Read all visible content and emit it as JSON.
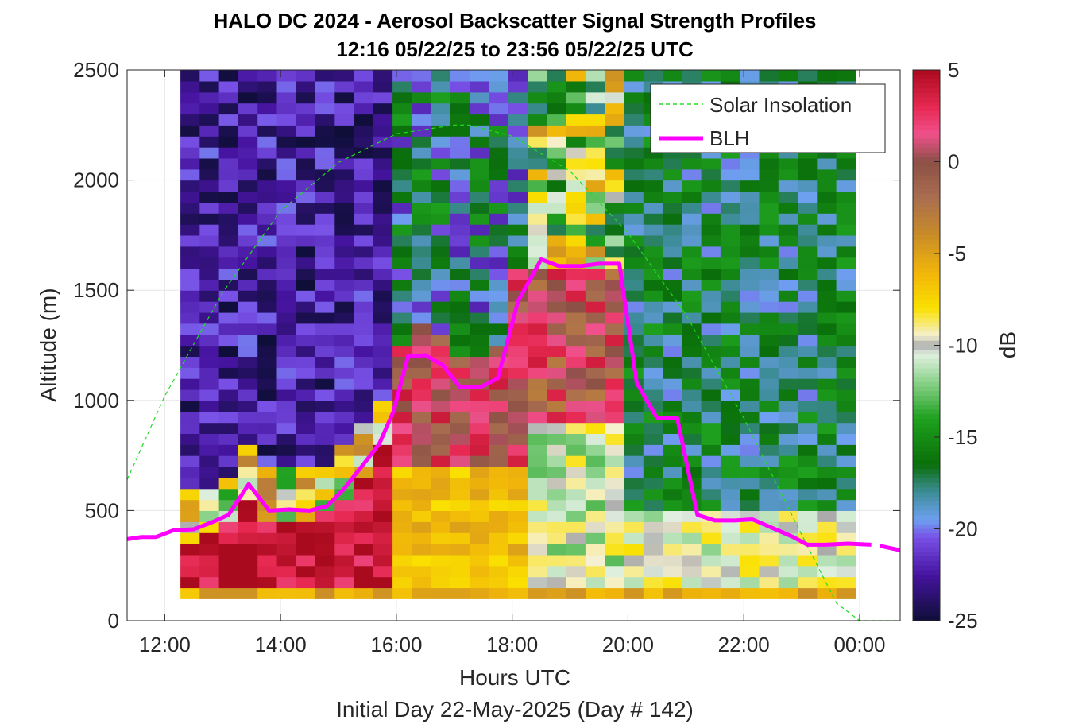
{
  "chart_data": {
    "type": "heatmap",
    "title": "HALO DC 2024 - Aerosol Backscatter Signal Strength Profiles",
    "subtitle": "12:16 05/22/25 to 23:56 05/22/25  UTC",
    "xlabel": "Hours UTC",
    "ylabel": "Altitude (m)",
    "footer": "Initial Day 22-May-2025 (Day # 142)",
    "x_ticks": [
      "12:00",
      "14:00",
      "16:00",
      "18:00",
      "20:00",
      "22:00",
      "00:00"
    ],
    "x_tick_hours": [
      12,
      14,
      16,
      18,
      20,
      22,
      24
    ],
    "xlim_hours": [
      11.35,
      24.7
    ],
    "y_ticks": [
      "0",
      "500",
      "1000",
      "1500",
      "2000",
      "2500"
    ],
    "y_tick_values": [
      0,
      500,
      1000,
      1500,
      2000,
      2500
    ],
    "ylim": [
      0,
      2500
    ],
    "grid": true,
    "legend_position": "top-right",
    "colorbar": {
      "label": "dB",
      "limits": [
        -25,
        5
      ],
      "ticks": [
        "5",
        "0",
        "-5",
        "-10",
        "-15",
        "-20",
        "-25"
      ],
      "tick_values": [
        5,
        0,
        -5,
        -10,
        -15,
        -20,
        -25
      ]
    },
    "series": [
      {
        "name": "Solar Insolation",
        "style": "dashed",
        "color": "#22dd22",
        "x_hours": [
          11.35,
          12.0,
          13.0,
          14.0,
          15.0,
          16.0,
          17.0,
          17.25,
          18.0,
          19.0,
          20.0,
          21.0,
          22.0,
          23.0,
          23.6,
          24.0,
          24.3,
          24.7
        ],
        "y": [
          640,
          1020,
          1490,
          1860,
          2080,
          2210,
          2250,
          2250,
          2200,
          2040,
          1760,
          1390,
          920,
          390,
          80,
          0,
          0,
          0
        ]
      },
      {
        "name": "BLH",
        "style": "solid",
        "color": "#ff00ff",
        "x_hours": [
          11.35,
          11.6,
          11.85,
          12.15,
          12.5,
          12.8,
          13.1,
          13.45,
          13.8,
          14.15,
          14.5,
          14.8,
          15.1,
          15.4,
          15.7,
          15.95,
          16.2,
          16.5,
          16.8,
          17.1,
          17.45,
          17.75,
          18.1,
          18.5,
          18.8,
          19.2,
          19.5,
          19.85,
          20.15,
          20.5,
          20.85,
          21.2,
          21.5,
          21.85,
          22.15,
          22.5,
          22.85,
          23.1,
          23.4,
          23.8,
          24.2
        ],
        "y": [
          370,
          380,
          380,
          410,
          415,
          445,
          480,
          620,
          500,
          505,
          500,
          520,
          600,
          700,
          800,
          950,
          1200,
          1205,
          1160,
          1060,
          1060,
          1100,
          1450,
          1640,
          1610,
          1610,
          1620,
          1620,
          1080,
          920,
          920,
          480,
          455,
          455,
          460,
          420,
          380,
          345,
          345,
          350,
          345
        ]
      },
      {
        "name": "",
        "style": "solid",
        "color": "#ff00ff",
        "x_hours": [
          24.35,
          24.7
        ],
        "y": [
          340,
          320
        ]
      }
    ],
    "heatmap": {
      "description_levels": "dB values at 12:16–23:56 UTC, 50 m bins from 100 to 2500 m",
      "x_start_hour": 12.27,
      "x_end_hour": 23.93,
      "y_start": 100,
      "y_end": 2500
    }
  }
}
